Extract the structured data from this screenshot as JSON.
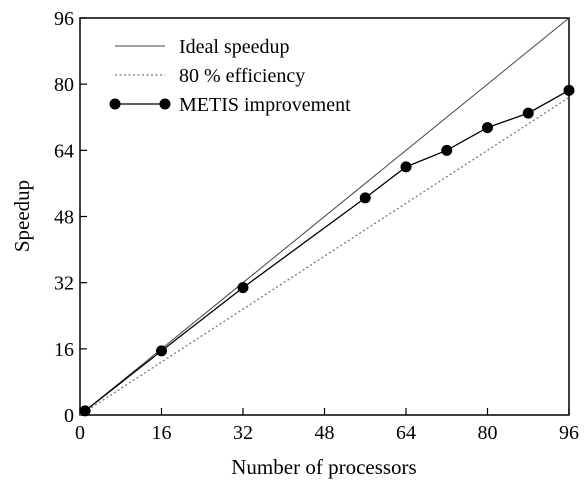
{
  "chart_data": {
    "type": "line",
    "title": "",
    "xlabel": "Number of processors",
    "ylabel": "Speedup",
    "xlim": [
      0,
      96
    ],
    "ylim": [
      0,
      96
    ],
    "xticks": [
      0,
      16,
      32,
      48,
      64,
      80,
      96
    ],
    "yticks": [
      0,
      16,
      32,
      48,
      64,
      80,
      96
    ],
    "grid": false,
    "legend_position": "top-left",
    "series": [
      {
        "name": "Ideal speedup",
        "style": "solid-thin",
        "color": "#444444",
        "x": [
          0,
          96
        ],
        "y": [
          0,
          96
        ]
      },
      {
        "name": "80 % efficiency",
        "style": "dotted",
        "color": "#777777",
        "x": [
          0,
          96
        ],
        "y": [
          0,
          76.8
        ]
      },
      {
        "name": "METIS improvement",
        "style": "solid-with-markers",
        "color": "#000000",
        "x": [
          1,
          16,
          32,
          56,
          64,
          72,
          80,
          88,
          96
        ],
        "y": [
          1,
          15.5,
          30.8,
          52.5,
          60.0,
          64.0,
          69.5,
          73.0,
          78.5
        ]
      }
    ]
  }
}
